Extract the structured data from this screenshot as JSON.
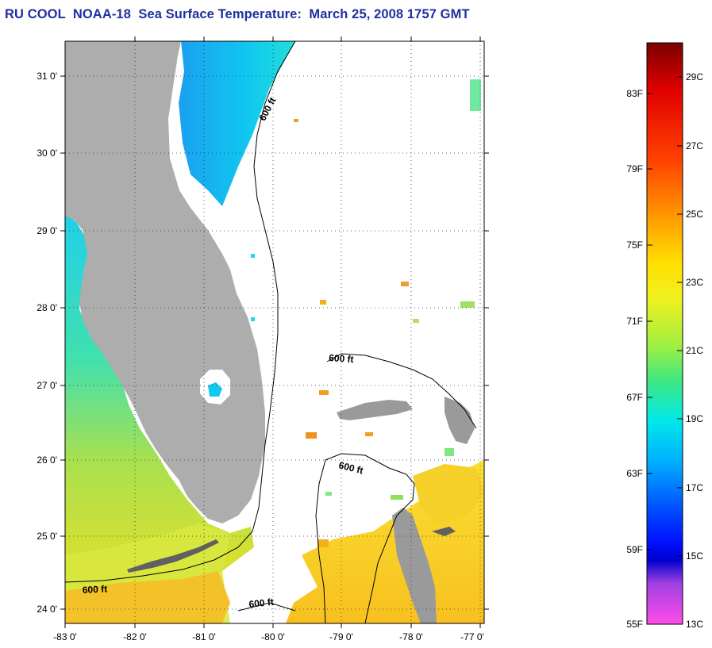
{
  "title": "RU COOL  NOAA-18  Sea Surface Temperature:  March 25, 2008 1757 GMT",
  "map": {
    "lat_labels": [
      "31 0'",
      "30 0'",
      "29 0'",
      "28 0'",
      "27 0'",
      "26 0'",
      "25 0'",
      "24 0'"
    ],
    "lon_labels": [
      "-83 0'",
      "-82 0'",
      "-81 0'",
      "-80 0'",
      "-79 0'",
      "-78 0'",
      "-77 0'"
    ],
    "contour_label": "600 ft",
    "colors": {
      "land": "#adadad",
      "ocean_background": "#ffffff",
      "grid": "#000000"
    }
  },
  "colorbar": {
    "fahrenheit_labels": [
      "83F",
      "79F",
      "75F",
      "71F",
      "67F",
      "63F",
      "59F",
      "55F"
    ],
    "celsius_labels": [
      "29C",
      "27C",
      "25C",
      "23C",
      "21C",
      "19C",
      "17C",
      "15C",
      "13C"
    ],
    "gradient_stops": [
      "#7a0000",
      "#e00000",
      "#ff4000",
      "#ff9a00",
      "#ffe000",
      "#c8f040",
      "#40e880",
      "#00e8e8",
      "#0090ff",
      "#0018ff",
      "#0000d0",
      "#a040e0",
      "#ff4ce8"
    ]
  }
}
